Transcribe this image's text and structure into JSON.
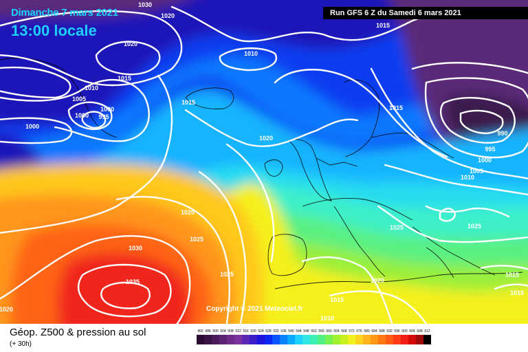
{
  "header": {
    "date_label": "Dimanche 7 mars 2021",
    "time_label": "13:00 locale",
    "run_label": "Run GFS 6 Z du Samedi 6 mars 2021"
  },
  "copyright": "Copyright © 2021 Meteociel.fr",
  "footer": {
    "title": "Géop. Z500 & pression au sol",
    "subtitle": "(+ 30h)"
  },
  "isobar_labels": [
    {
      "id": "iso-1030-top",
      "text": "1030"
    },
    {
      "id": "iso-1020-top",
      "text": "1020"
    },
    {
      "id": "iso-1020-a",
      "text": "1020"
    },
    {
      "id": "iso-1015-a",
      "text": "1015"
    },
    {
      "id": "iso-1010-a",
      "text": "1010"
    },
    {
      "id": "iso-1010-b",
      "text": "1010"
    },
    {
      "id": "iso-1005-a",
      "text": "1005"
    },
    {
      "id": "iso-1000-a",
      "text": "1000"
    },
    {
      "id": "iso-1000-b",
      "text": "1000"
    },
    {
      "id": "iso-995-a",
      "text": "995"
    },
    {
      "id": "iso-1000-c",
      "text": "1000"
    },
    {
      "id": "iso-1015-b",
      "text": "1015"
    },
    {
      "id": "iso-1015-c",
      "text": "1015"
    },
    {
      "id": "iso-1015-d",
      "text": "1015"
    },
    {
      "id": "iso-1020-b",
      "text": "1020"
    },
    {
      "id": "iso-990",
      "text": "990"
    },
    {
      "id": "iso-995-b",
      "text": "995"
    },
    {
      "id": "iso-1000-d",
      "text": "1000"
    },
    {
      "id": "iso-1005-b",
      "text": "1005"
    },
    {
      "id": "iso-1010-c",
      "text": "1010"
    },
    {
      "id": "iso-1020-c",
      "text": "1020"
    },
    {
      "id": "iso-1025-a",
      "text": "1025"
    },
    {
      "id": "iso-1030-b",
      "text": "1030"
    },
    {
      "id": "iso-1035",
      "text": "1035"
    },
    {
      "id": "iso-1025-b",
      "text": "1025"
    },
    {
      "id": "iso-1020-d",
      "text": "1020"
    },
    {
      "id": "iso-1025-c",
      "text": "1025"
    },
    {
      "id": "iso-1025-d",
      "text": "1025"
    },
    {
      "id": "iso-1020-e",
      "text": "1020"
    },
    {
      "id": "iso-1015-e",
      "text": "1015"
    },
    {
      "id": "iso-1010-d",
      "text": "1010"
    },
    {
      "id": "iso-1015-f",
      "text": "1015"
    },
    {
      "id": "iso-1015-g",
      "text": "1015"
    }
  ],
  "scale": [
    {
      "value": "492",
      "color": "#2a0a30"
    },
    {
      "value": "496",
      "color": "#3a1245"
    },
    {
      "value": "500",
      "color": "#4b1a5c"
    },
    {
      "value": "504",
      "color": "#5c2272"
    },
    {
      "value": "508",
      "color": "#6d2a88"
    },
    {
      "value": "512",
      "color": "#7a32a0"
    },
    {
      "value": "516",
      "color": "#5a28b4"
    },
    {
      "value": "520",
      "color": "#3c1ec8"
    },
    {
      "value": "524",
      "color": "#1e14dc"
    },
    {
      "value": "528",
      "color": "#0a28f0"
    },
    {
      "value": "532",
      "color": "#0a55ff"
    },
    {
      "value": "536",
      "color": "#0a82ff"
    },
    {
      "value": "540",
      "color": "#0aaaff"
    },
    {
      "value": "544",
      "color": "#1ed2ff"
    },
    {
      "value": "548",
      "color": "#32e6e6"
    },
    {
      "value": "552",
      "color": "#3cf0b4"
    },
    {
      "value": "556",
      "color": "#50f082"
    },
    {
      "value": "560",
      "color": "#78f050"
    },
    {
      "value": "564",
      "color": "#a0f032"
    },
    {
      "value": "568",
      "color": "#c8f01e"
    },
    {
      "value": "572",
      "color": "#f0f01e"
    },
    {
      "value": "576",
      "color": "#ffd21e"
    },
    {
      "value": "580",
      "color": "#ffb41e"
    },
    {
      "value": "584",
      "color": "#ff9614"
    },
    {
      "value": "588",
      "color": "#ff7814"
    },
    {
      "value": "592",
      "color": "#ff5a14"
    },
    {
      "value": "596",
      "color": "#ff3c14"
    },
    {
      "value": "600",
      "color": "#f01e14"
    },
    {
      "value": "604",
      "color": "#d20a0a"
    },
    {
      "value": "608",
      "color": "#a00a0a"
    },
    {
      "value": "612",
      "color": "#000000"
    }
  ],
  "map_colors": {
    "deep_purple": "#3a1a4e",
    "purple": "#5a2a78",
    "dark_blue": "#1c14b8",
    "blue": "#0a3cf0",
    "mid_blue": "#0a78ff",
    "light_blue": "#14b4ff",
    "cyan": "#28dcf0",
    "aqua": "#3cf0c8",
    "green": "#5af082",
    "lime": "#9aef3a",
    "yellow_green": "#d2f01e",
    "yellow": "#f5f01e",
    "light_orange": "#ffc81e",
    "orange": "#ff961a",
    "red_orange": "#ff6414",
    "red": "#f0281e"
  }
}
